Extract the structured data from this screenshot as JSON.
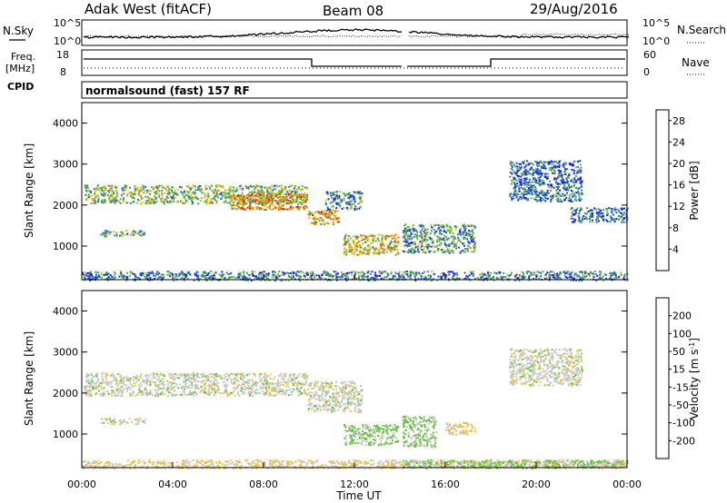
{
  "header": {
    "radar": "Adak West (fitACF)",
    "beam": "Beam 08",
    "date": "29/Aug/2016"
  },
  "mode_label": "normalsound (fast) 157 RF",
  "noise_panel": {
    "left_label": "N.Sky",
    "right_label": "N.Search",
    "ticks_left": [
      "10^5",
      "10^0"
    ],
    "ticks_right": [
      "10^5",
      "10^0"
    ]
  },
  "freq_panel": {
    "left_label_1": "Freq.",
    "left_label_2": "[MHz]",
    "cpid_label": "CPID",
    "right_label": "Nave",
    "ticks_left": [
      "18",
      "8"
    ],
    "ticks_right": [
      "60",
      "0"
    ]
  },
  "chart_data": [
    {
      "type": "heatmap",
      "title": "",
      "xlabel": "Time UT",
      "ylabel": "Slant Range [km]",
      "x_ticks": [
        "00:00",
        "04:00",
        "08:00",
        "12:00",
        "16:00",
        "20:00",
        "00:00"
      ],
      "y_ticks": [
        "1000",
        "2000",
        "3000",
        "4000"
      ],
      "xlim": [
        0,
        24
      ],
      "ylim": [
        180,
        4500
      ],
      "colorbar": {
        "label": "Power [dB]",
        "ticks": [
          "4",
          "8",
          "12",
          "16",
          "20",
          "24",
          "28"
        ],
        "range": [
          0,
          30
        ],
        "colors": [
          "#1a1aff",
          "#2050c8",
          "#3a8ab0",
          "#3c9c5c",
          "#58b040",
          "#a8c830",
          "#f0c000",
          "#f09000",
          "#f06000",
          "#e82000"
        ]
      },
      "regions": [
        {
          "t0": 0.1,
          "t1": 9.9,
          "r0": 2050,
          "r1": 2500,
          "value": 14
        },
        {
          "t0": 6.5,
          "t1": 9.9,
          "r0": 1900,
          "r1": 2300,
          "value": 22
        },
        {
          "t0": 0.8,
          "t1": 2.8,
          "r0": 1250,
          "r1": 1400,
          "value": 10
        },
        {
          "t0": 9.9,
          "t1": 11.3,
          "r0": 1550,
          "r1": 1900,
          "value": 20
        },
        {
          "t0": 10.7,
          "t1": 12.3,
          "r0": 1900,
          "r1": 2350,
          "value": 9
        },
        {
          "t0": 11.5,
          "t1": 13.9,
          "r0": 800,
          "r1": 1300,
          "value": 18
        },
        {
          "t0": 14.1,
          "t1": 17.3,
          "r0": 850,
          "r1": 1550,
          "value": 10
        },
        {
          "t0": 18.8,
          "t1": 22.0,
          "r0": 2100,
          "r1": 3100,
          "value": 6
        },
        {
          "t0": 21.5,
          "t1": 24.0,
          "r0": 1600,
          "r1": 1950,
          "value": 6
        },
        {
          "t0": 0.0,
          "t1": 24.0,
          "r0": 180,
          "r1": 400,
          "value": 8
        }
      ]
    },
    {
      "type": "heatmap",
      "title": "",
      "xlabel": "Time UT",
      "ylabel": "Slant Range [km]",
      "x_ticks": [
        "00:00",
        "04:00",
        "08:00",
        "12:00",
        "16:00",
        "20:00",
        "00:00"
      ],
      "y_ticks": [
        "1000",
        "2000",
        "3000",
        "4000"
      ],
      "xlim": [
        0,
        24
      ],
      "ylim": [
        180,
        4500
      ],
      "colorbar": {
        "label": "Velocity [m s^-1]",
        "ticks": [
          "200",
          "100",
          "50",
          "15",
          "-15",
          "-50",
          "-100",
          "-200"
        ],
        "range": [
          -250,
          250
        ],
        "colors": [
          "#2830c0",
          "#2870c0",
          "#2a8a60",
          "#68c040",
          "#c8c8c8",
          "#f0c030",
          "#f09020",
          "#f05010",
          "#e81010"
        ]
      },
      "regions": [
        {
          "t0": 0.1,
          "t1": 9.9,
          "r0": 1950,
          "r1": 2500,
          "value": 0
        },
        {
          "t0": 0.8,
          "t1": 2.8,
          "r0": 1250,
          "r1": 1400,
          "value": 0
        },
        {
          "t0": 9.9,
          "t1": 12.3,
          "r0": 1550,
          "r1": 2300,
          "value": 0
        },
        {
          "t0": 11.5,
          "t1": 13.9,
          "r0": 750,
          "r1": 1250,
          "value": -40
        },
        {
          "t0": 14.1,
          "t1": 15.6,
          "r0": 700,
          "r1": 1450,
          "value": -40
        },
        {
          "t0": 16.0,
          "t1": 17.3,
          "r0": 1000,
          "r1": 1300,
          "value": 40
        },
        {
          "t0": 18.8,
          "t1": 22.0,
          "r0": 2200,
          "r1": 3100,
          "value": 0
        },
        {
          "t0": 0.0,
          "t1": 24.0,
          "r0": 180,
          "r1": 380,
          "value": 30
        },
        {
          "t0": 14.1,
          "t1": 24.0,
          "r0": 180,
          "r1": 380,
          "value": -40
        }
      ]
    }
  ]
}
